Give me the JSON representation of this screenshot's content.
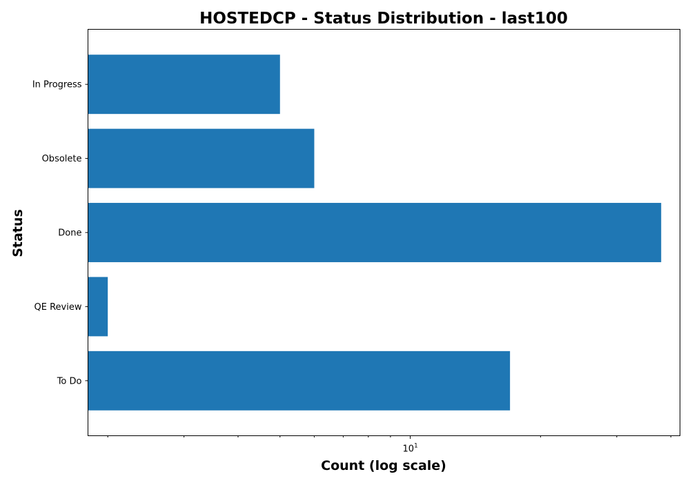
{
  "chart_data": {
    "type": "bar",
    "orientation": "horizontal",
    "title": "HOSTEDCP - Status Distribution - last100",
    "xlabel": "Count (log scale)",
    "ylabel": "Status",
    "xscale": "log",
    "xlim": [
      1.8,
      42
    ],
    "x_major_ticks": [
      {
        "value": 10,
        "base": "10",
        "exponent": "1"
      }
    ],
    "x_minor_ticks": [
      2,
      3,
      4,
      5,
      6,
      7,
      8,
      9,
      20,
      30,
      40
    ],
    "categories": [
      "In Progress",
      "Obsolete",
      "Done",
      "QE Review",
      "To Do"
    ],
    "values": [
      5,
      6,
      38,
      2,
      17
    ],
    "bar_color": "#1f77b4",
    "grid": false,
    "legend": "none"
  }
}
